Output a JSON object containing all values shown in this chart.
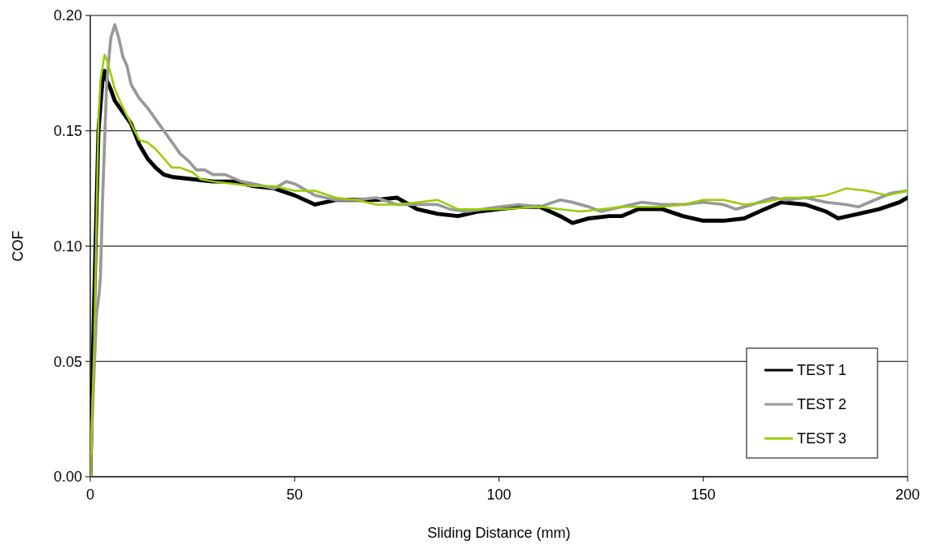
{
  "chart_data": {
    "type": "line",
    "xlabel": "Sliding Distance (mm)",
    "ylabel": "COF",
    "xlim": [
      0,
      200
    ],
    "xticks": [
      0,
      50,
      100,
      150,
      200
    ],
    "ylim": [
      0,
      0.2
    ],
    "yticks": [
      {
        "value": 0,
        "label": "0.00"
      },
      {
        "value": 0.05,
        "label": "0.05"
      },
      {
        "value": 0.1,
        "label": "0.10"
      },
      {
        "value": 0.15,
        "label": "0.15"
      },
      {
        "value": 0.2,
        "label": "0.20"
      }
    ],
    "grid": "y",
    "legend": "bottom right",
    "marker": "none",
    "line_style": "solid",
    "series": [
      {
        "name": "TEST 1",
        "color": "#000000",
        "x": [
          0,
          1,
          2,
          3,
          3.5,
          4,
          5,
          6,
          8,
          10,
          12,
          14,
          16,
          18,
          20,
          25,
          30,
          35,
          40,
          45,
          50,
          55,
          60,
          65,
          70,
          75,
          78,
          80,
          85,
          90,
          95,
          100,
          105,
          110,
          115,
          118,
          122,
          127,
          130,
          134,
          140,
          145,
          150,
          155,
          160,
          165,
          169,
          175,
          180,
          183,
          188,
          193,
          198,
          200
        ],
        "values": [
          0,
          0.08,
          0.15,
          0.172,
          0.176,
          0.172,
          0.168,
          0.163,
          0.158,
          0.153,
          0.144,
          0.138,
          0.134,
          0.131,
          0.13,
          0.129,
          0.128,
          0.128,
          0.126,
          0.125,
          0.122,
          0.118,
          0.12,
          0.12,
          0.12,
          0.121,
          0.118,
          0.116,
          0.114,
          0.113,
          0.115,
          0.116,
          0.117,
          0.117,
          0.113,
          0.11,
          0.112,
          0.113,
          0.113,
          0.116,
          0.116,
          0.113,
          0.111,
          0.111,
          0.112,
          0.116,
          0.119,
          0.118,
          0.115,
          0.112,
          0.114,
          0.116,
          0.119,
          0.121
        ]
      },
      {
        "name": "TEST 2",
        "color": "#999999",
        "x": [
          0,
          0.8,
          1.5,
          2.2,
          2.5,
          3,
          4,
          5,
          6,
          7,
          8,
          9,
          10,
          12,
          14,
          16,
          18,
          20,
          22,
          24,
          26,
          28,
          30,
          33,
          37,
          40,
          45,
          48,
          50,
          53,
          55,
          60,
          65,
          70,
          75,
          80,
          85,
          88,
          92,
          100,
          105,
          110,
          115,
          118,
          122,
          125,
          130,
          135,
          140,
          145,
          150,
          155,
          158,
          162,
          167,
          170,
          175,
          180,
          185,
          188,
          192,
          196,
          200
        ],
        "values": [
          0,
          0.04,
          0.07,
          0.08,
          0.087,
          0.12,
          0.17,
          0.19,
          0.196,
          0.19,
          0.182,
          0.178,
          0.17,
          0.164,
          0.16,
          0.155,
          0.15,
          0.145,
          0.14,
          0.137,
          0.133,
          0.133,
          0.131,
          0.131,
          0.128,
          0.127,
          0.125,
          0.128,
          0.127,
          0.124,
          0.122,
          0.12,
          0.12,
          0.121,
          0.118,
          0.118,
          0.118,
          0.116,
          0.115,
          0.117,
          0.118,
          0.117,
          0.12,
          0.119,
          0.117,
          0.115,
          0.117,
          0.119,
          0.118,
          0.118,
          0.119,
          0.118,
          0.116,
          0.118,
          0.121,
          0.12,
          0.121,
          0.119,
          0.118,
          0.117,
          0.12,
          0.123,
          0.124
        ]
      },
      {
        "name": "TEST 3",
        "color": "#99cc00",
        "x": [
          0,
          1,
          1.5,
          2,
          2.5,
          3.5,
          4,
          5,
          6,
          8,
          10,
          12,
          14,
          16,
          18,
          20,
          22,
          25,
          27,
          30,
          35,
          40,
          45,
          50,
          55,
          60,
          65,
          70,
          75,
          80,
          85,
          90,
          95,
          100,
          110,
          115,
          120,
          125,
          130,
          140,
          145,
          150,
          155,
          160,
          165,
          170,
          175,
          180,
          185,
          190,
          195,
          200
        ],
        "values": [
          0,
          0.06,
          0.11,
          0.155,
          0.172,
          0.183,
          0.181,
          0.175,
          0.168,
          0.16,
          0.153,
          0.146,
          0.145,
          0.142,
          0.138,
          0.134,
          0.134,
          0.132,
          0.129,
          0.128,
          0.127,
          0.126,
          0.126,
          0.124,
          0.124,
          0.121,
          0.12,
          0.118,
          0.118,
          0.119,
          0.12,
          0.116,
          0.116,
          0.116,
          0.117,
          0.116,
          0.115,
          0.116,
          0.117,
          0.117,
          0.118,
          0.12,
          0.12,
          0.118,
          0.119,
          0.121,
          0.121,
          0.122,
          0.125,
          0.124,
          0.122,
          0.124
        ]
      }
    ]
  }
}
